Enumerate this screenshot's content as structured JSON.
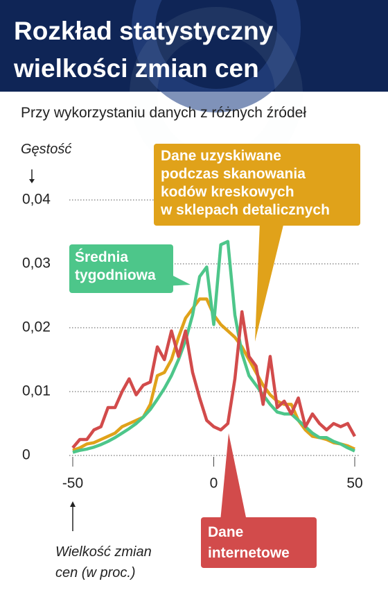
{
  "chart_data": {
    "type": "line",
    "title": "Rozkład statystyczny\nwielkości zmian cen",
    "subtitle": "Przy wykorzystaniu danych z różnych źródeł",
    "ylabel": "Gęstość",
    "xlabel": "Wielkość zmian\ncen (w proc.)",
    "x": [
      -50,
      -47.5,
      -45,
      -42.5,
      -40,
      -37.5,
      -35,
      -32.5,
      -30,
      -27.5,
      -25,
      -22.5,
      -20,
      -17.5,
      -15,
      -12.5,
      -10,
      -7.5,
      -5,
      -2.5,
      0,
      2.5,
      5,
      7.5,
      10,
      12.5,
      15,
      17.5,
      20,
      22.5,
      25,
      27.5,
      30,
      32.5,
      35,
      37.5,
      40,
      42.5,
      45,
      47.5,
      50
    ],
    "xlim": [
      -50,
      50
    ],
    "xticks": [
      -50,
      0,
      50
    ],
    "ylim": [
      0,
      0.04
    ],
    "yticks": [
      0,
      {
        "value": 0.01,
        "label": "0,01"
      },
      {
        "value": 0.02,
        "label": "0,02"
      },
      {
        "value": 0.03,
        "label": "0,03"
      },
      {
        "value": 0.04,
        "label": "0,04"
      }
    ],
    "grid": true,
    "series": [
      {
        "name": "Średnia\ntygodniowa",
        "color": "#4dc68a",
        "values": [
          0.0005,
          0.0008,
          0.001,
          0.0013,
          0.0017,
          0.0022,
          0.0028,
          0.0035,
          0.0042,
          0.005,
          0.006,
          0.0072,
          0.0088,
          0.0105,
          0.0125,
          0.015,
          0.018,
          0.022,
          0.028,
          0.0295,
          0.0205,
          0.033,
          0.0335,
          0.022,
          0.016,
          0.0125,
          0.011,
          0.0095,
          0.008,
          0.0068,
          0.0065,
          0.0065,
          0.0055,
          0.0045,
          0.0035,
          0.0028,
          0.0028,
          0.0022,
          0.0018,
          0.0012,
          0.0007
        ]
      },
      {
        "name": "Dane uzyskiwane\npodczas skanowania\nkodów kreskowych\nw sklepach detalicznych",
        "color": "#e0a21a",
        "values": [
          0.0008,
          0.0012,
          0.0018,
          0.002,
          0.0025,
          0.003,
          0.0035,
          0.0045,
          0.005,
          0.0055,
          0.006,
          0.008,
          0.0125,
          0.013,
          0.015,
          0.0185,
          0.0215,
          0.023,
          0.0245,
          0.0245,
          0.022,
          0.0205,
          0.0195,
          0.0185,
          0.017,
          0.015,
          0.013,
          0.011,
          0.0095,
          0.0085,
          0.008,
          0.008,
          0.0055,
          0.004,
          0.003,
          0.0028,
          0.0025,
          0.002,
          0.0018,
          0.0015,
          0.001
        ]
      },
      {
        "name": "Dane\ninternetowe",
        "color": "#d24b4b",
        "values": [
          0.0012,
          0.0025,
          0.0025,
          0.004,
          0.0045,
          0.0075,
          0.0075,
          0.01,
          0.012,
          0.0095,
          0.011,
          0.0115,
          0.017,
          0.015,
          0.0195,
          0.0155,
          0.0195,
          0.013,
          0.009,
          0.0055,
          0.0045,
          0.004,
          0.005,
          0.012,
          0.0225,
          0.0155,
          0.014,
          0.008,
          0.0155,
          0.0075,
          0.0085,
          0.0065,
          0.009,
          0.0045,
          0.0065,
          0.005,
          0.004,
          0.005,
          0.0045,
          0.005,
          0.003
        ]
      }
    ]
  }
}
